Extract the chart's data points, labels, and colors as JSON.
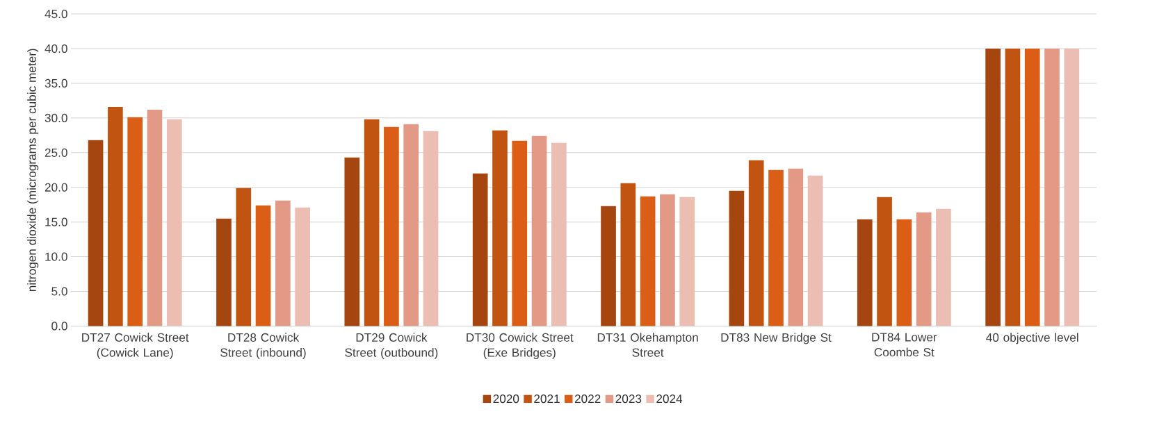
{
  "chart_data": {
    "type": "bar",
    "ylabel": "nitrogen dioxide (micrograms per cubic meter)",
    "categories": [
      "DT27 Cowick Street (Cowick Lane)",
      "DT28 Cowick Street (inbound)",
      "DT29 Cowick Street (outbound)",
      "DT30 Cowick Street (Exe Bridges)",
      "DT31 Okehampton Street",
      "DT83 New Bridge St",
      "DT84 Lower Coombe St",
      "40 objective level"
    ],
    "series": [
      {
        "name": "2020",
        "color": "#a5450f",
        "values": [
          26.8,
          15.5,
          24.3,
          22.0,
          17.3,
          19.5,
          15.4,
          40
        ]
      },
      {
        "name": "2021",
        "color": "#c25412",
        "values": [
          31.6,
          19.9,
          29.8,
          28.2,
          20.6,
          23.9,
          18.6,
          40
        ]
      },
      {
        "name": "2022",
        "color": "#da5e16",
        "values": [
          30.1,
          17.4,
          28.7,
          26.7,
          18.7,
          22.5,
          15.4,
          40
        ]
      },
      {
        "name": "2023",
        "color": "#e29a86",
        "values": [
          31.2,
          18.1,
          29.1,
          27.4,
          19.0,
          22.7,
          16.4,
          40
        ]
      },
      {
        "name": "2024",
        "color": "#ebbdb3",
        "values": [
          29.8,
          17.1,
          28.1,
          26.4,
          18.6,
          21.7,
          16.9,
          40
        ]
      }
    ],
    "ylim": [
      0,
      45
    ],
    "yticks": [
      {
        "value": 0,
        "label": "0.0"
      },
      {
        "value": 5,
        "label": "5.0"
      },
      {
        "value": 10,
        "label": "10.0"
      },
      {
        "value": 15,
        "label": "15.0"
      },
      {
        "value": 20,
        "label": "20.0"
      },
      {
        "value": 25,
        "label": "25.0"
      },
      {
        "value": 30,
        "label": "30.0"
      },
      {
        "value": 35,
        "label": "35.0"
      },
      {
        "value": 40,
        "label": "40.0"
      },
      {
        "value": 45,
        "label": "45.0"
      }
    ],
    "grid": "y",
    "legend": "bottom"
  }
}
